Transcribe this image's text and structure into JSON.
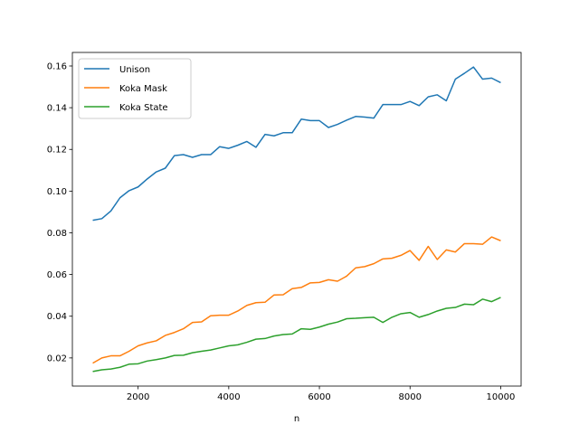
{
  "chart_data": {
    "type": "line",
    "title": "",
    "xlabel": "n",
    "ylabel": "",
    "xlim": [
      550,
      10450
    ],
    "ylim": [
      0.0065,
      0.1665
    ],
    "x_ticks": [
      2000,
      4000,
      6000,
      8000,
      10000
    ],
    "x_tick_labels": [
      "2000",
      "4000",
      "6000",
      "8000",
      "10000"
    ],
    "y_ticks": [
      0.02,
      0.04,
      0.06,
      0.08,
      0.1,
      0.12,
      0.14,
      0.16
    ],
    "y_tick_labels": [
      "0.02",
      "0.04",
      "0.06",
      "0.08",
      "0.10",
      "0.12",
      "0.14",
      "0.16"
    ],
    "grid": false,
    "legend_position": "top-left",
    "x": [
      1000,
      1200,
      1400,
      1600,
      1800,
      2000,
      2200,
      2400,
      2600,
      2800,
      3000,
      3200,
      3400,
      3600,
      3800,
      4000,
      4200,
      4400,
      4600,
      4800,
      5000,
      5200,
      5400,
      5600,
      5800,
      6000,
      6200,
      6400,
      6600,
      6800,
      7000,
      7200,
      7400,
      7600,
      7800,
      8000,
      8200,
      8400,
      8600,
      8800,
      9000,
      9200,
      9400,
      9600,
      9800,
      10000
    ],
    "series": [
      {
        "name": "Unison",
        "color": "#1f77b4",
        "values": [
          0.086,
          0.0868,
          0.0905,
          0.0968,
          0.1002,
          0.102,
          0.1058,
          0.1092,
          0.111,
          0.117,
          0.1175,
          0.1162,
          0.1175,
          0.1175,
          0.1213,
          0.1205,
          0.122,
          0.1238,
          0.121,
          0.1272,
          0.1265,
          0.128,
          0.128,
          0.1345,
          0.1338,
          0.1338,
          0.1305,
          0.132,
          0.134,
          0.1358,
          0.1355,
          0.135,
          0.1415,
          0.1415,
          0.1415,
          0.143,
          0.141,
          0.1452,
          0.1462,
          0.1433,
          0.1537,
          0.1565,
          0.1595,
          0.1537,
          0.1542,
          0.152
        ]
      },
      {
        "name": "Koka Mask",
        "color": "#ff7f0e",
        "values": [
          0.0175,
          0.02,
          0.021,
          0.021,
          0.0232,
          0.0258,
          0.0272,
          0.0282,
          0.0308,
          0.0322,
          0.034,
          0.037,
          0.0373,
          0.0402,
          0.0405,
          0.0405,
          0.0425,
          0.0452,
          0.0465,
          0.0467,
          0.0502,
          0.0503,
          0.0532,
          0.0538,
          0.056,
          0.0562,
          0.0575,
          0.0568,
          0.0592,
          0.0632,
          0.0638,
          0.0652,
          0.0675,
          0.0678,
          0.0692,
          0.0715,
          0.0668,
          0.0735,
          0.0672,
          0.0718,
          0.0708,
          0.0748,
          0.0748,
          0.0745,
          0.078,
          0.0762
        ]
      },
      {
        "name": "Koka State",
        "color": "#2ca02c",
        "values": [
          0.0135,
          0.0143,
          0.0147,
          0.0155,
          0.017,
          0.0172,
          0.0185,
          0.0192,
          0.02,
          0.0212,
          0.0213,
          0.0225,
          0.0232,
          0.0238,
          0.0248,
          0.0258,
          0.0263,
          0.0275,
          0.029,
          0.0293,
          0.0305,
          0.0312,
          0.0315,
          0.034,
          0.0337,
          0.0348,
          0.0362,
          0.0372,
          0.0388,
          0.039,
          0.0393,
          0.0395,
          0.037,
          0.0395,
          0.0412,
          0.0418,
          0.0395,
          0.0408,
          0.0425,
          0.0438,
          0.0442,
          0.0458,
          0.0455,
          0.0482,
          0.047,
          0.049
        ]
      }
    ]
  }
}
